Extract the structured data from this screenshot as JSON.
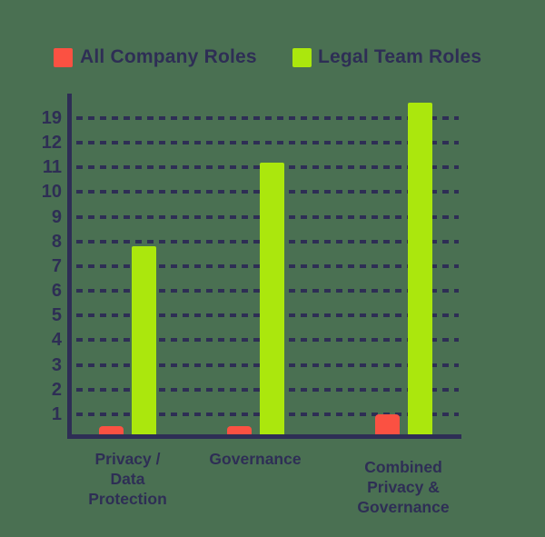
{
  "colors": {
    "background": "#4a7052",
    "navy": "#2e2e55",
    "red": "#fb5142",
    "green": "#abe70d"
  },
  "legend": {
    "items": [
      {
        "label": "All Company Roles",
        "color": "#fb5142",
        "icon": "red-square-swatch"
      },
      {
        "label": "Legal Team Roles",
        "color": "#abe70d",
        "icon": "green-square-swatch"
      }
    ]
  },
  "chart_data": {
    "type": "bar",
    "title": "",
    "xlabel": "",
    "ylabel": "",
    "categories_lines": [
      [
        "Privacy /",
        "Data",
        "Protection"
      ],
      [
        "Governance"
      ],
      [
        "Combined",
        "Privacy &",
        "Governance"
      ]
    ],
    "categories": [
      "Privacy / Data Protection",
      "Governance",
      "Combined Privacy & Governance"
    ],
    "series": [
      {
        "name": "All Company Roles",
        "color": "#fb5142",
        "values": [
          0.5,
          0.5,
          1
        ]
      },
      {
        "name": "Legal Team Roles",
        "color": "#abe70d",
        "values": [
          7.8,
          11.2,
          19.5
        ]
      }
    ],
    "y_tick_labels_top_to_bottom": [
      "19",
      "12",
      "11",
      "10",
      "9",
      "8",
      "7",
      "6",
      "5",
      "4",
      "3",
      "2",
      "1"
    ],
    "y_axis_note": "non-linear scale: evenly spaced gridlines labeled 1-12 then 19",
    "grid": "horizontal dashed navy lines",
    "legend_position": "top"
  }
}
